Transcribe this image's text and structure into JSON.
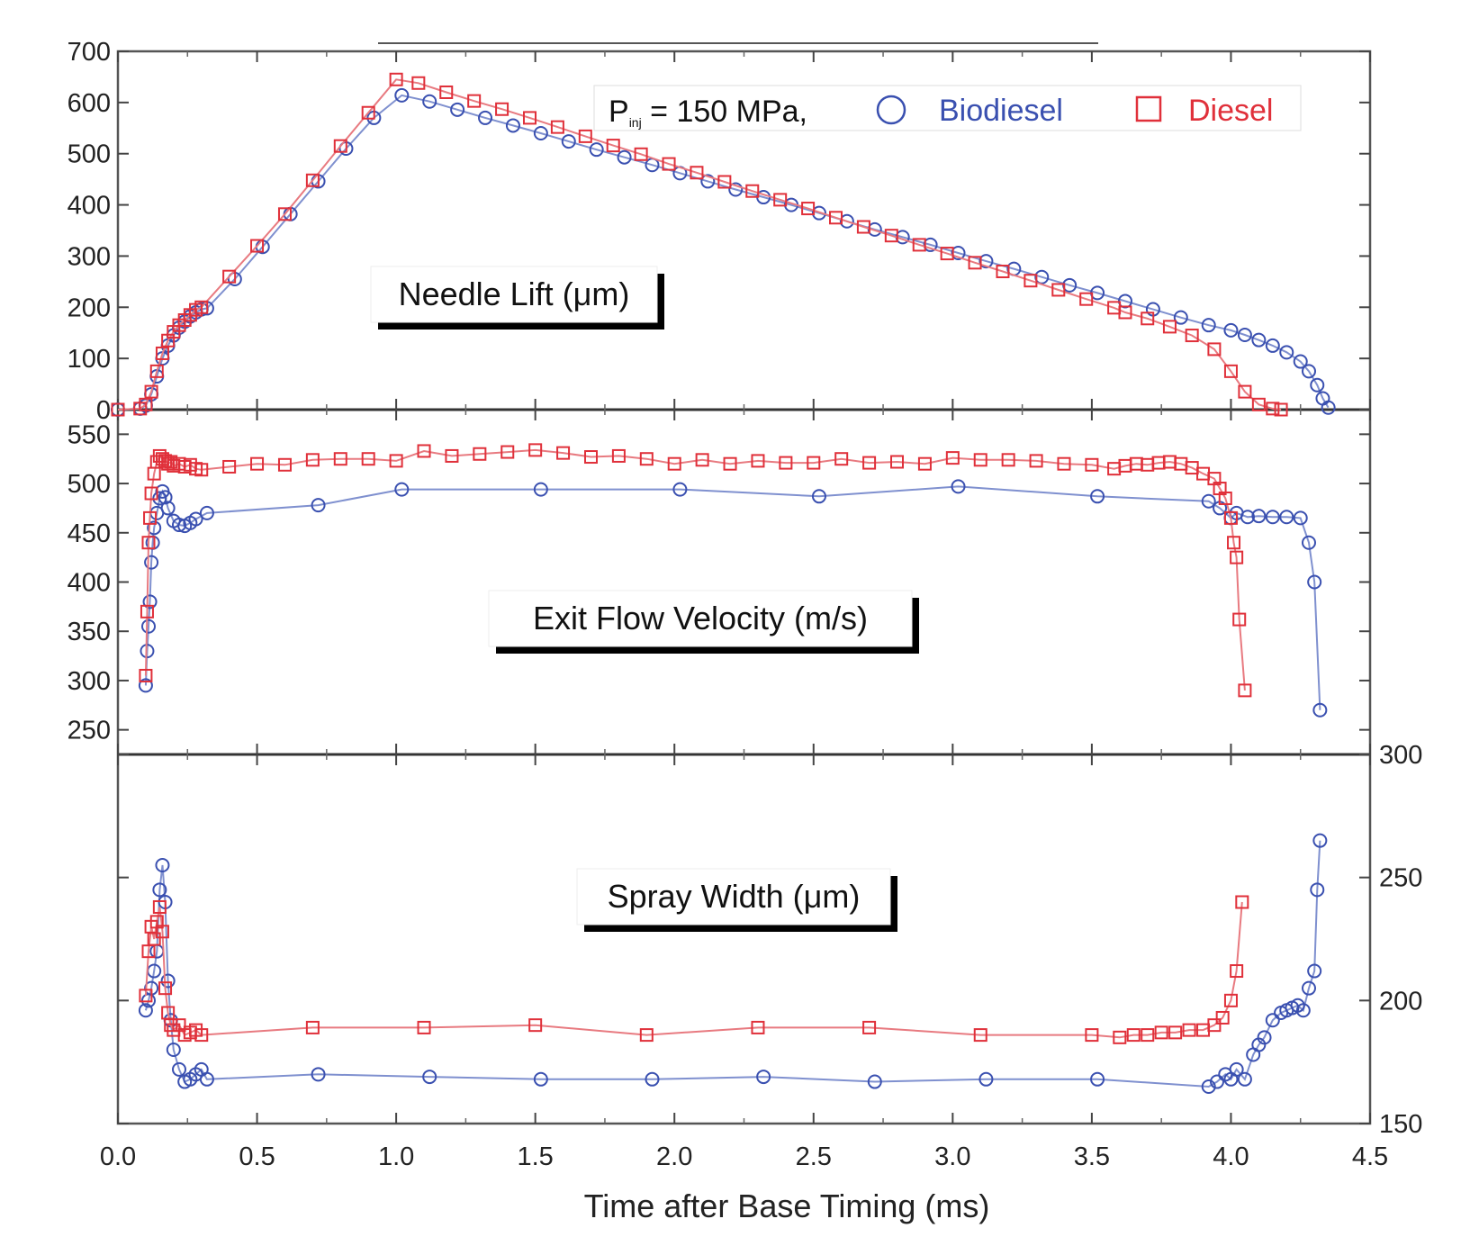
{
  "chart_data": {
    "type": "line",
    "xlabel": "Time after Base Timing (ms)",
    "xlim": [
      0.0,
      4.5
    ],
    "xticks": [
      "0.0",
      "0.5",
      "1.0",
      "1.5",
      "2.0",
      "2.5",
      "3.0",
      "3.5",
      "4.0",
      "4.5"
    ],
    "legend": {
      "prefix": "P",
      "subscript": "inj",
      "condition": "= 150 MPa,",
      "placement": "top-right",
      "entries": [
        {
          "name": "Biodiesel",
          "marker": "circle",
          "color": "#3a50b0"
        },
        {
          "name": "Diesel",
          "marker": "square",
          "color": "#e0303a"
        }
      ]
    },
    "panels": [
      {
        "id": "needle",
        "label": "Needle Lift (μm)",
        "ylim": [
          0,
          700
        ],
        "yticks": [
          "0",
          "100",
          "200",
          "300",
          "400",
          "500",
          "600",
          "700"
        ],
        "series": [
          {
            "name": "Biodiesel",
            "x": [
              0.0,
              0.08,
              0.1,
              0.12,
              0.14,
              0.16,
              0.18,
              0.2,
              0.22,
              0.24,
              0.26,
              0.28,
              0.3,
              0.32,
              0.42,
              0.52,
              0.62,
              0.72,
              0.82,
              0.92,
              1.02,
              1.12,
              1.22,
              1.32,
              1.42,
              1.52,
              1.62,
              1.72,
              1.82,
              1.92,
              2.02,
              2.12,
              2.22,
              2.32,
              2.42,
              2.52,
              2.62,
              2.72,
              2.82,
              2.92,
              3.02,
              3.12,
              3.22,
              3.32,
              3.42,
              3.52,
              3.62,
              3.72,
              3.82,
              3.92,
              4.0,
              4.05,
              4.1,
              4.15,
              4.2,
              4.25,
              4.28,
              4.31,
              4.33,
              4.35
            ],
            "y": [
              0,
              2,
              8,
              30,
              65,
              100,
              125,
              145,
              160,
              172,
              182,
              190,
              196,
              198,
              255,
              318,
              382,
              446,
              510,
              570,
              614,
              602,
              586,
              570,
              555,
              540,
              524,
              508,
              493,
              478,
              462,
              446,
              430,
              415,
              400,
              384,
              368,
              352,
              337,
              322,
              306,
              290,
              275,
              259,
              243,
              228,
              212,
              196,
              180,
              165,
              155,
              146,
              136,
              125,
              112,
              94,
              75,
              48,
              22,
              4
            ]
          },
          {
            "name": "Diesel",
            "x": [
              0.0,
              0.08,
              0.1,
              0.12,
              0.14,
              0.16,
              0.18,
              0.2,
              0.22,
              0.24,
              0.26,
              0.28,
              0.3,
              0.4,
              0.5,
              0.6,
              0.7,
              0.8,
              0.9,
              1.0,
              1.08,
              1.18,
              1.28,
              1.38,
              1.48,
              1.58,
              1.68,
              1.78,
              1.88,
              1.98,
              2.08,
              2.18,
              2.28,
              2.38,
              2.48,
              2.58,
              2.68,
              2.78,
              2.88,
              2.98,
              3.08,
              3.18,
              3.28,
              3.38,
              3.48,
              3.58,
              3.62,
              3.7,
              3.78,
              3.86,
              3.94,
              4.0,
              4.05,
              4.1,
              4.15,
              4.18
            ],
            "y": [
              0,
              2,
              10,
              35,
              75,
              110,
              135,
              152,
              165,
              175,
              185,
              195,
              200,
              260,
              320,
              382,
              448,
              515,
              580,
              645,
              638,
              620,
              603,
              587,
              570,
              552,
              534,
              516,
              499,
              480,
              463,
              445,
              427,
              410,
              393,
              375,
              357,
              340,
              322,
              305,
              287,
              270,
              252,
              234,
              216,
              199,
              190,
              178,
              162,
              145,
              118,
              75,
              35,
              10,
              2,
              0
            ]
          }
        ]
      },
      {
        "id": "velocity",
        "label": "Exit Flow Velocity (m/s)",
        "ylim": [
          225,
          575
        ],
        "yticks": [
          "250",
          "300",
          "350",
          "400",
          "450",
          "500",
          "550"
        ],
        "series": [
          {
            "name": "Biodiesel",
            "x": [
              0.1,
              0.105,
              0.11,
              0.115,
              0.12,
              0.125,
              0.13,
              0.14,
              0.15,
              0.16,
              0.17,
              0.18,
              0.2,
              0.22,
              0.24,
              0.26,
              0.28,
              0.32,
              0.72,
              1.02,
              1.52,
              2.02,
              2.52,
              3.02,
              3.52,
              3.92,
              3.96,
              4.0,
              4.02,
              4.06,
              4.1,
              4.15,
              4.2,
              4.25,
              4.28,
              4.3,
              4.32
            ],
            "y": [
              295,
              330,
              355,
              380,
              420,
              440,
              455,
              470,
              485,
              492,
              486,
              475,
              462,
              458,
              457,
              460,
              464,
              470,
              478,
              494,
              494,
              494,
              487,
              497,
              487,
              482,
              475,
              465,
              470,
              466,
              467,
              466,
              466,
              465,
              440,
              400,
              270
            ]
          },
          {
            "name": "Diesel",
            "x": [
              0.1,
              0.105,
              0.11,
              0.115,
              0.12,
              0.13,
              0.14,
              0.15,
              0.16,
              0.17,
              0.18,
              0.19,
              0.2,
              0.22,
              0.24,
              0.26,
              0.28,
              0.3,
              0.4,
              0.5,
              0.6,
              0.7,
              0.8,
              0.9,
              1.0,
              1.1,
              1.2,
              1.3,
              1.4,
              1.5,
              1.6,
              1.7,
              1.8,
              1.9,
              2.0,
              2.1,
              2.2,
              2.3,
              2.4,
              2.5,
              2.6,
              2.7,
              2.8,
              2.9,
              3.0,
              3.1,
              3.2,
              3.3,
              3.4,
              3.5,
              3.58,
              3.62,
              3.66,
              3.7,
              3.74,
              3.78,
              3.82,
              3.86,
              3.9,
              3.94,
              3.96,
              3.98,
              4.0,
              4.01,
              4.02,
              4.03,
              4.05
            ],
            "y": [
              305,
              370,
              440,
              465,
              490,
              510,
              522,
              528,
              525,
              523,
              520,
              522,
              518,
              520,
              517,
              519,
              515,
              514,
              517,
              520,
              519,
              524,
              525,
              525,
              523,
              533,
              528,
              530,
              532,
              534,
              531,
              527,
              528,
              525,
              520,
              524,
              520,
              523,
              521,
              521,
              525,
              521,
              522,
              520,
              526,
              524,
              524,
              523,
              520,
              519,
              515,
              518,
              520,
              519,
              521,
              522,
              520,
              516,
              510,
              505,
              495,
              485,
              465,
              440,
              425,
              362,
              290
            ]
          }
        ]
      },
      {
        "id": "width",
        "label": "Spray Width (μm)",
        "ylim": [
          150,
          300
        ],
        "yticks": [
          "150",
          "200",
          "250",
          "300"
        ],
        "series": [
          {
            "name": "Biodiesel",
            "x": [
              0.1,
              0.11,
              0.12,
              0.13,
              0.14,
              0.15,
              0.16,
              0.17,
              0.18,
              0.19,
              0.2,
              0.22,
              0.24,
              0.26,
              0.28,
              0.3,
              0.32,
              0.72,
              1.12,
              1.52,
              1.92,
              2.32,
              2.72,
              3.12,
              3.52,
              3.92,
              3.95,
              3.98,
              4.0,
              4.02,
              4.05,
              4.08,
              4.1,
              4.12,
              4.15,
              4.18,
              4.2,
              4.22,
              4.24,
              4.26,
              4.28,
              4.3,
              4.31,
              4.32
            ],
            "y": [
              196,
              200,
              205,
              212,
              220,
              245,
              255,
              240,
              208,
              192,
              180,
              172,
              167,
              168,
              170,
              172,
              168,
              170,
              169,
              168,
              168,
              169,
              167,
              168,
              168,
              165,
              167,
              170,
              168,
              172,
              168,
              178,
              182,
              185,
              192,
              195,
              196,
              197,
              198,
              196,
              205,
              212,
              245,
              265
            ]
          },
          {
            "name": "Diesel",
            "x": [
              0.1,
              0.11,
              0.12,
              0.13,
              0.14,
              0.15,
              0.16,
              0.17,
              0.18,
              0.19,
              0.2,
              0.22,
              0.24,
              0.26,
              0.28,
              0.3,
              0.7,
              1.1,
              1.5,
              1.9,
              2.3,
              2.7,
              3.1,
              3.5,
              3.6,
              3.65,
              3.7,
              3.75,
              3.8,
              3.85,
              3.9,
              3.94,
              3.97,
              4.0,
              4.02,
              4.04
            ],
            "y": [
              202,
              220,
              230,
              225,
              232,
              238,
              228,
              205,
              195,
              190,
              188,
              190,
              186,
              187,
              188,
              186,
              189,
              189,
              190,
              186,
              189,
              189,
              186,
              186,
              185,
              186,
              186,
              187,
              187,
              188,
              188,
              190,
              193,
              200,
              212,
              240
            ]
          }
        ]
      }
    ]
  }
}
